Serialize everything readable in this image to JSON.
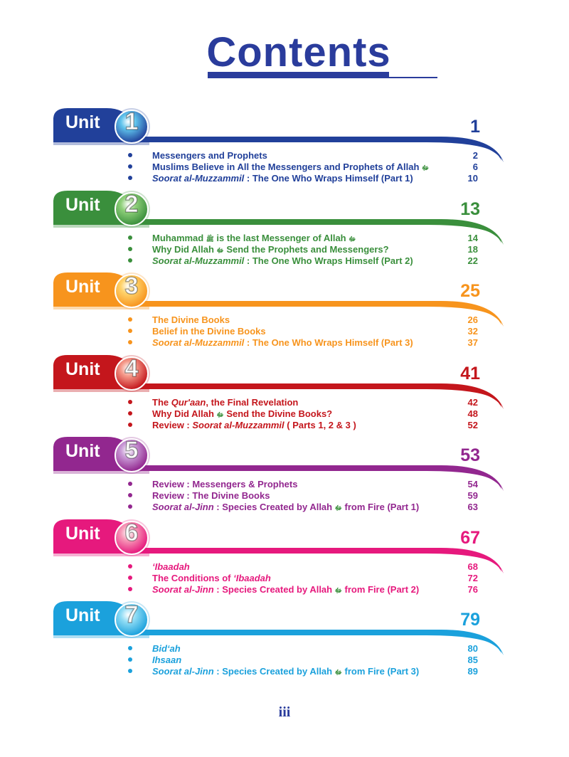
{
  "title": "Contents",
  "unit_word": "Unit",
  "folio": "iii",
  "units": [
    {
      "number": "1",
      "page": "1",
      "color": "#21409a",
      "light": "#5fc3ec",
      "items": [
        {
          "segments": [
            {
              "text": "Messengers and Prophets"
            }
          ],
          "page": "2"
        },
        {
          "segments": [
            {
              "text": "Muslims Believe in All the Messengers and Prophets of Allah "
            },
            {
              "text": "ﷻ",
              "honorific": true
            }
          ],
          "page": "6"
        },
        {
          "segments": [
            {
              "text": "Soorat al-Muzzammil",
              "italic": true
            },
            {
              "text": " : The One Who Wraps Himself (Part 1)"
            }
          ],
          "page": "10"
        }
      ]
    },
    {
      "number": "2",
      "page": "13",
      "color": "#3a8f3c",
      "light": "#8fd07a",
      "items": [
        {
          "segments": [
            {
              "text": "Muhammad "
            },
            {
              "text": "ﷺ",
              "honorific": true
            },
            {
              "text": " is the last Messenger of Allah "
            },
            {
              "text": "ﷻ",
              "honorific": true
            }
          ],
          "page": "14"
        },
        {
          "segments": [
            {
              "text": "Why Did Allah "
            },
            {
              "text": "ﷻ",
              "honorific": true
            },
            {
              "text": " Send the Prophets and Messengers?"
            }
          ],
          "page": "18"
        },
        {
          "segments": [
            {
              "text": "Soorat al-Muzzammil",
              "italic": true
            },
            {
              "text": " : The One Who Wraps Himself (Part 2)"
            }
          ],
          "page": "22"
        }
      ]
    },
    {
      "number": "3",
      "page": "25",
      "color": "#f7941d",
      "light": "#ffd36b",
      "items": [
        {
          "segments": [
            {
              "text": "The Divine Books"
            }
          ],
          "page": "26"
        },
        {
          "segments": [
            {
              "text": "Belief in the Divine Books"
            }
          ],
          "page": "32"
        },
        {
          "segments": [
            {
              "text": "Soorat al-Muzzammil",
              "italic": true
            },
            {
              "text": " : The One Who Wraps Himself (Part 3)"
            }
          ],
          "page": "37"
        }
      ]
    },
    {
      "number": "4",
      "page": "41",
      "color": "#c4161c",
      "light": "#f59a8a",
      "items": [
        {
          "segments": [
            {
              "text": "The "
            },
            {
              "text": "Qur'aan",
              "italic": true
            },
            {
              "text": ", the Final Revelation"
            }
          ],
          "page": "42"
        },
        {
          "segments": [
            {
              "text": "Why Did Allah "
            },
            {
              "text": "ﷻ",
              "honorific": true
            },
            {
              "text": " Send the Divine Books?"
            }
          ],
          "page": "48"
        },
        {
          "segments": [
            {
              "text": "Review : "
            },
            {
              "text": "Soorat al-Muzzammil",
              "italic": true
            },
            {
              "text": " ( Parts 1, 2 & 3 )"
            }
          ],
          "page": "52"
        }
      ]
    },
    {
      "number": "5",
      "page": "53",
      "color": "#92278f",
      "light": "#c99ad6",
      "items": [
        {
          "segments": [
            {
              "text": "Review : Messengers & Prophets"
            }
          ],
          "page": "54"
        },
        {
          "segments": [
            {
              "text": "Review : The Divine Books"
            }
          ],
          "page": "59"
        },
        {
          "segments": [
            {
              "text": "Soorat al-Jinn",
              "italic": true
            },
            {
              "text": " : Species Created by Allah "
            },
            {
              "text": "ﷻ",
              "honorific": true
            },
            {
              "text": " from Fire (Part 1)"
            }
          ],
          "page": "63"
        }
      ]
    },
    {
      "number": "6",
      "page": "67",
      "color": "#e6197d",
      "light": "#f79ab8",
      "items": [
        {
          "segments": [
            {
              "text": "‘Ibaadah",
              "italic": true
            }
          ],
          "page": "68"
        },
        {
          "segments": [
            {
              "text": "The Conditions of "
            },
            {
              "text": "‘Ibaadah",
              "italic": true
            }
          ],
          "page": "72"
        },
        {
          "segments": [
            {
              "text": "Soorat al-Jinn",
              "italic": true
            },
            {
              "text": " : Species Created by Allah "
            },
            {
              "text": "ﷻ",
              "honorific": true
            },
            {
              "text": " from Fire (Part 2)"
            }
          ],
          "page": "76"
        }
      ]
    },
    {
      "number": "7",
      "page": "79",
      "color": "#1ba1dc",
      "light": "#8fdcf5",
      "items": [
        {
          "segments": [
            {
              "text": "Bid‘ah",
              "italic": true
            }
          ],
          "page": "80"
        },
        {
          "segments": [
            {
              "text": "Ihsaan",
              "italic": true
            }
          ],
          "page": "85"
        },
        {
          "segments": [
            {
              "text": "Soorat al-Jinn",
              "italic": true
            },
            {
              "text": " : Species Created by Allah "
            },
            {
              "text": "ﷻ",
              "honorific": true
            },
            {
              "text": " from Fire (Part 3)"
            }
          ],
          "page": "89"
        }
      ]
    }
  ]
}
